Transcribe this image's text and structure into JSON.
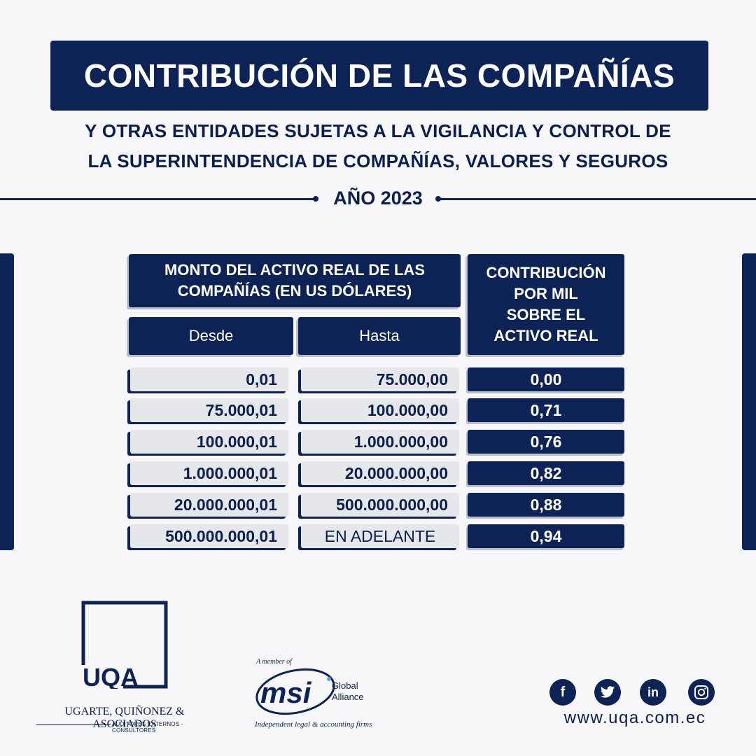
{
  "header": {
    "title": "CONTRIBUCIÓN DE LAS COMPAÑÍAS",
    "subtitle_line1": "Y OTRAS ENTIDADES SUJETAS A LA VIGILANCIA Y CONTROL DE",
    "subtitle_line2": "LA SUPERINTENDENCIA DE COMPAÑÍAS, VALORES Y SEGUROS",
    "year": "AÑO 2023"
  },
  "table": {
    "group_header_line1": "MONTO DEL ACTIVO REAL DE LAS",
    "group_header_line2": "COMPAÑÍAS (EN US DÓLARES)",
    "col_desde": "Desde",
    "col_hasta": "Hasta",
    "col_contrib_line1": "CONTRIBUCIÓN",
    "col_contrib_line2": "POR MIL",
    "col_contrib_line3": "SOBRE EL",
    "col_contrib_line4": "ACTIVO REAL",
    "rows": [
      {
        "desde": "0,01",
        "hasta": "75.000,00",
        "contrib": "0,00"
      },
      {
        "desde": "75.000,01",
        "hasta": "100.000,00",
        "contrib": "0,71"
      },
      {
        "desde": "100.000,01",
        "hasta": "1.000.000,00",
        "contrib": "0,76"
      },
      {
        "desde": "1.000.000,01",
        "hasta": "20.000.000,00",
        "contrib": "0,82"
      },
      {
        "desde": "20.000.000,01",
        "hasta": "500.000.000,00",
        "contrib": "0,88"
      },
      {
        "desde": "500.000.000,01",
        "hasta": "EN ADELANTE",
        "contrib": "0,94"
      }
    ]
  },
  "footer": {
    "uqa_logo_text": "UQA",
    "uqa_name": "UGARTE, QUIÑONEZ & ASOCIADOS",
    "uqa_tagline": "AUDITORES EXTERNOS - CONSULTORES",
    "msi_member": "A member of",
    "msi_text": "msi",
    "msi_global": "Global",
    "msi_alliance": "Alliance",
    "msi_tagline": "Independent legal & accounting firms",
    "social_icons": [
      "facebook-icon",
      "twitter-icon",
      "linkedin-icon",
      "instagram-icon"
    ],
    "website": "www.uqa.com.ec"
  },
  "colors": {
    "navy": "#0d2356",
    "cell_grey": "#e6e7ea",
    "background": "#f7f7f9"
  }
}
